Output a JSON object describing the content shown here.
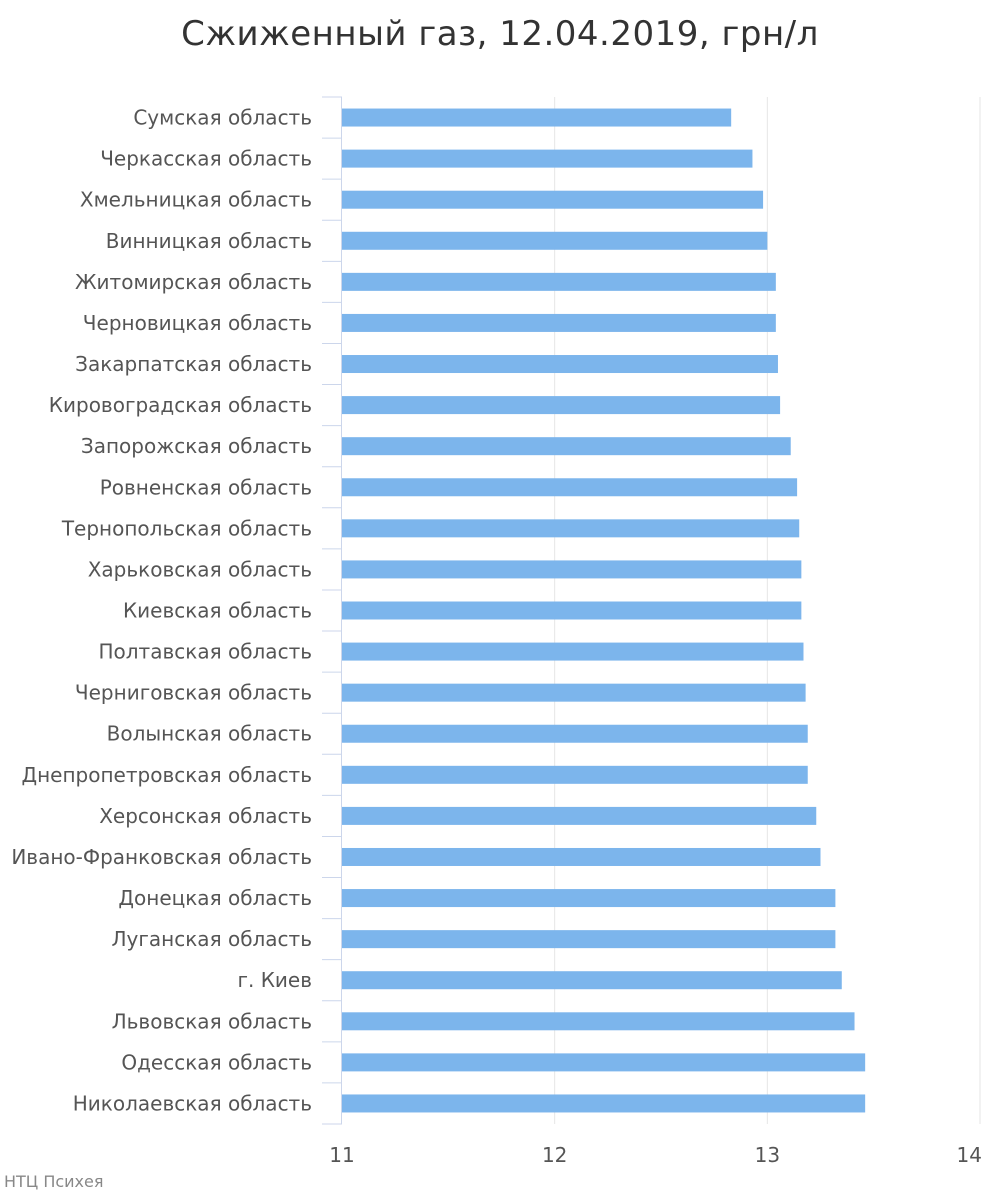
{
  "chart_data": {
    "type": "bar",
    "orientation": "horizontal",
    "title": "Сжиженный газ, 12.04.2019, грн/л",
    "xlabel": "",
    "ylabel": "",
    "xlim": [
      11,
      14
    ],
    "ticks": [
      "11",
      "12",
      "13",
      "14"
    ],
    "grid": true,
    "bar_color": "#7cb5ec",
    "categories": [
      "Сумская область",
      "Черкасская область",
      "Хмельницкая область",
      "Винницкая область",
      "Житомирская область",
      "Черновицкая область",
      "Закарпатская область",
      "Кировоградская область",
      "Запорожская область",
      "Ровненская область",
      "Тернопольская область",
      "Харьковская область",
      "Киевская область",
      "Полтавская область",
      "Черниговская область",
      "Волынская область",
      "Днепропетровская область",
      "Херсонская область",
      "Ивано-Франковская область",
      "Донецкая область",
      "Луганская область",
      "г. Киев",
      "Львовская область",
      "Одесская область",
      "Николаевская область"
    ],
    "values": [
      12.83,
      12.93,
      12.98,
      13.0,
      13.04,
      13.04,
      13.05,
      13.06,
      13.11,
      13.14,
      13.15,
      13.16,
      13.16,
      13.17,
      13.18,
      13.19,
      13.19,
      13.23,
      13.25,
      13.32,
      13.32,
      13.35,
      13.41,
      13.46,
      13.46
    ]
  },
  "credit": "НТЦ Психея"
}
